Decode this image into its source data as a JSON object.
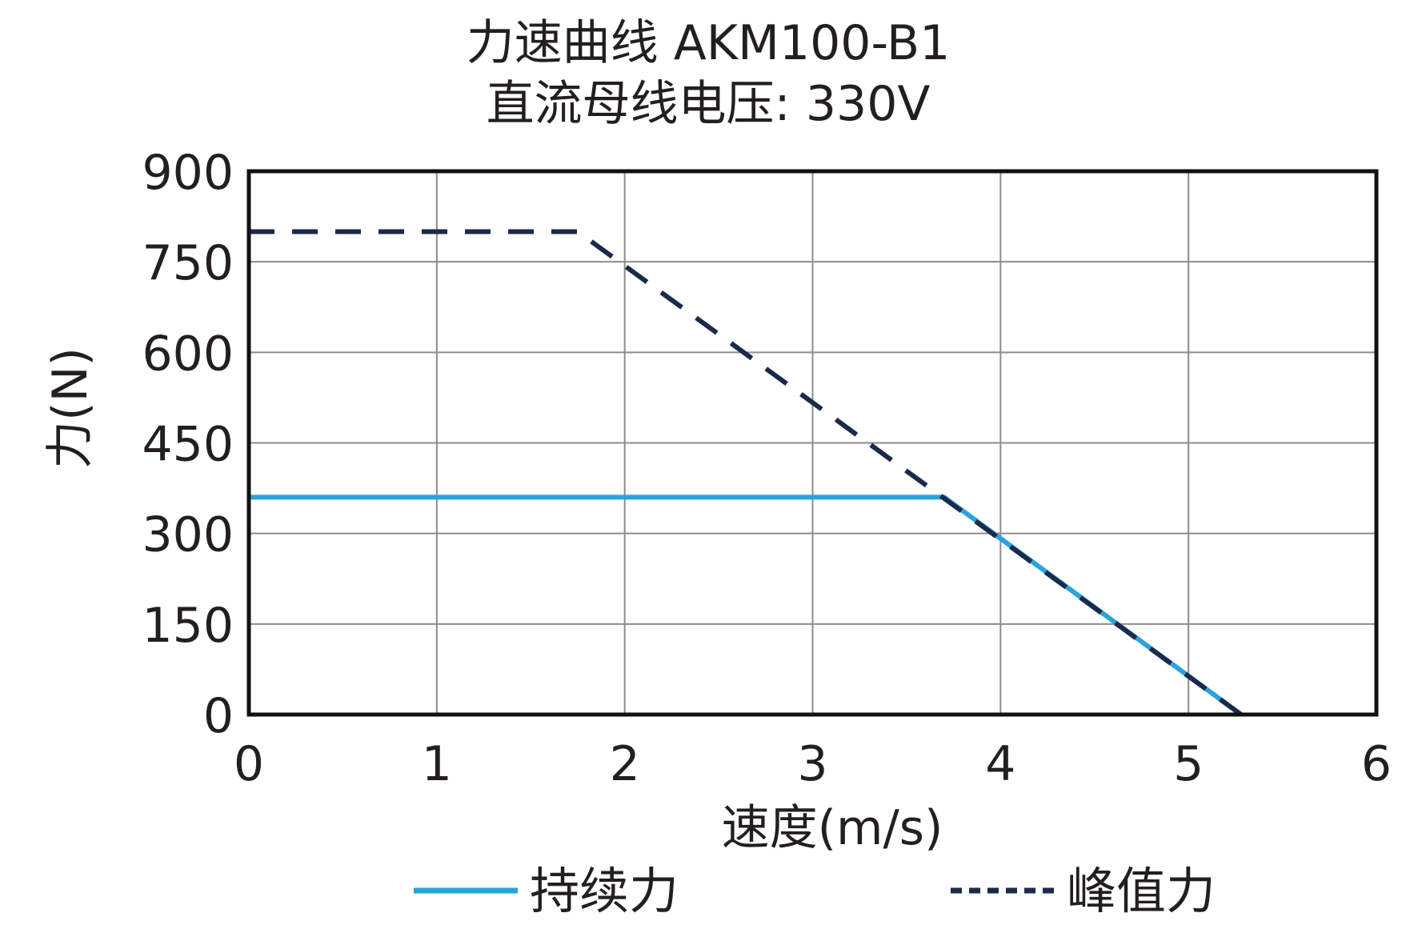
{
  "chart_data": {
    "type": "line",
    "title": "力速曲线 AKM100-B1",
    "subtitle": "直流母线电压: 330V",
    "xlabel": "速度(m/s)",
    "ylabel": "力(N)",
    "xlim": [
      0,
      6
    ],
    "ylim": [
      0,
      900
    ],
    "x_ticks": [
      0,
      1,
      2,
      3,
      4,
      5,
      6
    ],
    "y_ticks": [
      0,
      150,
      300,
      450,
      600,
      750,
      900
    ],
    "x_tick_labels": [
      "0",
      "1",
      "2",
      "3",
      "4",
      "5",
      "6"
    ],
    "y_tick_labels": [
      "0",
      "150",
      "300",
      "450",
      "600",
      "750",
      "900"
    ],
    "grid": true,
    "legend_position": "bottom",
    "series": [
      {
        "name": "持续力",
        "color": "#29a3dd",
        "style": "solid",
        "x": [
          0,
          3.7,
          5.28
        ],
        "y": [
          360,
          360,
          0
        ]
      },
      {
        "name": "峰值力",
        "color": "#1b2a4a",
        "style": "dashed",
        "x": [
          0,
          1.75,
          5.28
        ],
        "y": [
          800,
          800,
          0
        ]
      }
    ]
  }
}
